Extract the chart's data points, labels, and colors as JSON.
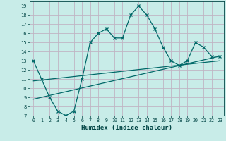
{
  "xlabel": "Humidex (Indice chaleur)",
  "bg_color": "#c8ece8",
  "grid_color": "#c0b4c4",
  "line_color": "#006868",
  "xlim": [
    -0.5,
    23.5
  ],
  "ylim": [
    7,
    19.5
  ],
  "xticks": [
    0,
    1,
    2,
    3,
    4,
    5,
    6,
    7,
    8,
    9,
    10,
    11,
    12,
    13,
    14,
    15,
    16,
    17,
    18,
    19,
    20,
    21,
    22,
    23
  ],
  "yticks": [
    7,
    8,
    9,
    10,
    11,
    12,
    13,
    14,
    15,
    16,
    17,
    18,
    19
  ],
  "main_x": [
    0,
    1,
    2,
    3,
    4,
    5,
    6,
    7,
    8,
    9,
    10,
    11,
    12,
    13,
    14,
    15,
    16,
    17,
    18,
    19,
    20,
    21,
    22,
    23
  ],
  "main_y": [
    13,
    11,
    9,
    7.5,
    7,
    7.5,
    11,
    15,
    16,
    16.5,
    15.5,
    15.5,
    18,
    19,
    18,
    16.5,
    14.5,
    13,
    12.5,
    13,
    15,
    14.5,
    13.5,
    13.5
  ],
  "line1_x": [
    0,
    23
  ],
  "line1_y": [
    8.8,
    13.5
  ],
  "line2_x": [
    0,
    23
  ],
  "line2_y": [
    10.8,
    13.0
  ]
}
